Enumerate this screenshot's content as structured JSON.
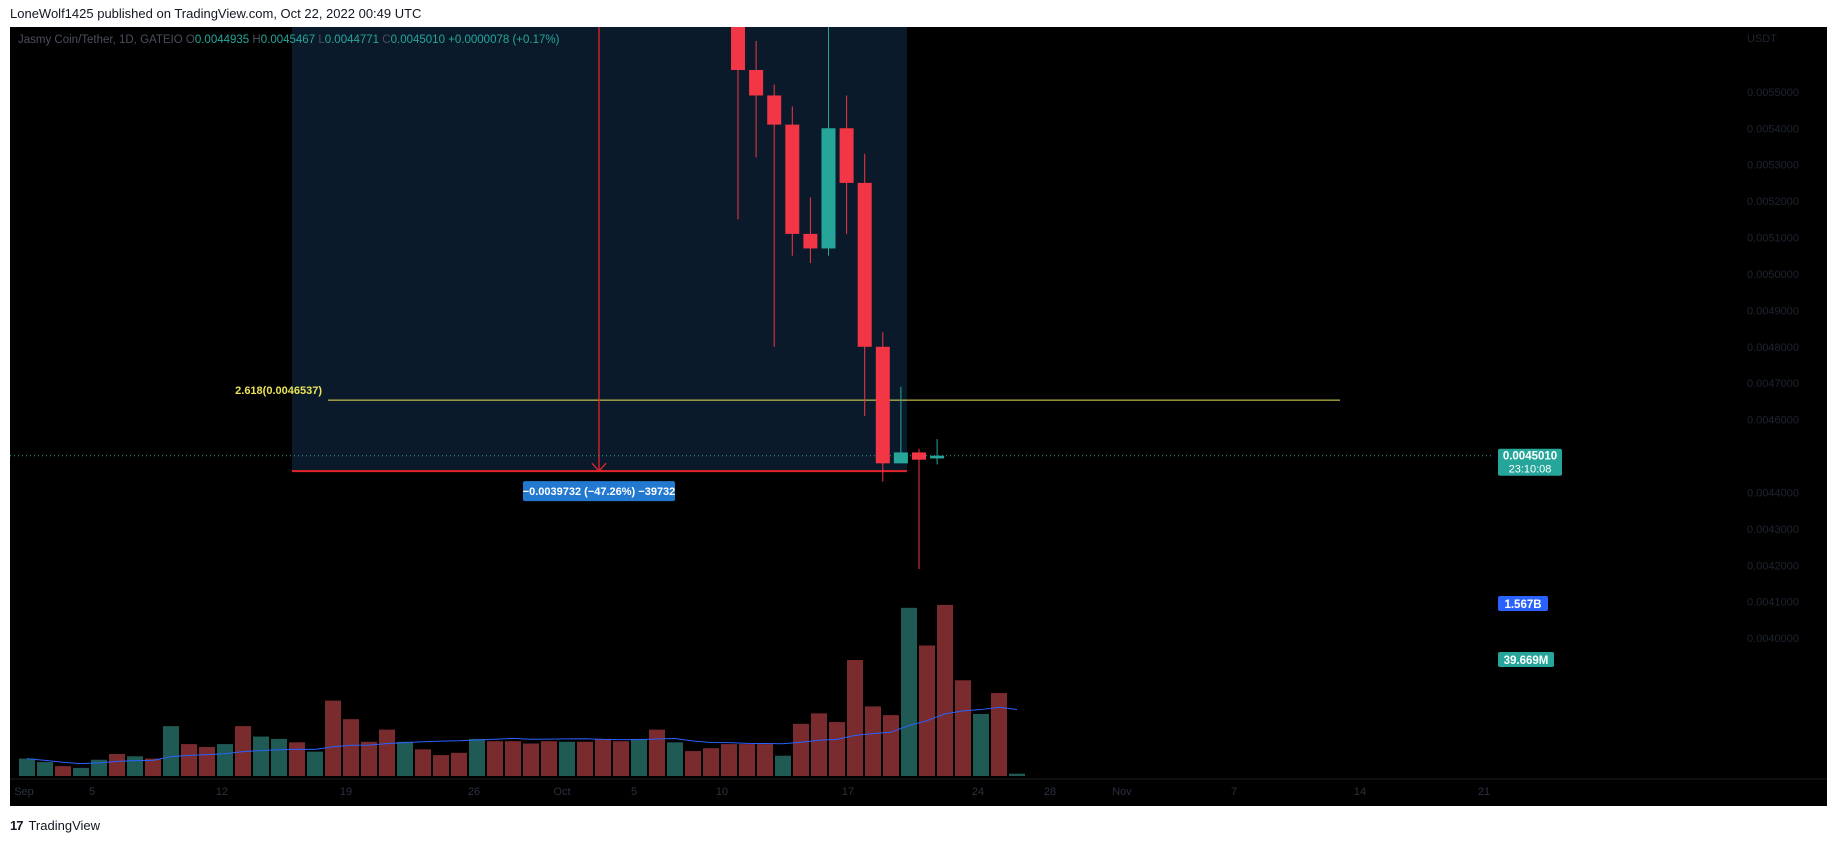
{
  "caption": "LoneWolf1425 published on TradingView.com, Oct 22, 2022 00:49 UTC",
  "legend": {
    "symbol": "Jasmy Coin/Tether, 1D, GATEIO",
    "o": "0.0044935",
    "h": "0.0045467",
    "l": "0.0044771",
    "c": "0.0045010",
    "chg": "+0.0000078 (+0.17%)"
  },
  "footer": {
    "brand": "TradingView",
    "logo": "17"
  },
  "colors": {
    "up": "#26a69a",
    "down": "#f23645",
    "vol_up": "#1f5a54",
    "vol_down": "#7a2b2e",
    "ma": "#2962ff",
    "fib": "#e9e357",
    "measure": "#e5242b",
    "zone": "#0a1a2b"
  },
  "chart_data": {
    "type": "candlestick",
    "symbol": "Jasmy Coin/Tether",
    "interval": "1D",
    "exchange": "GATEIO",
    "currency": "USDT",
    "ylim": [
      0.0038,
      0.0057
    ],
    "y_ticks": [
      "0.0055000",
      "0.0054000",
      "0.0053000",
      "0.0052000",
      "0.0051000",
      "0.0050000",
      "0.0049000",
      "0.0048000",
      "0.0047000",
      "0.0046000",
      "0.0044000",
      "0.0043000",
      "0.0042000",
      "0.0041000",
      "0.0040000"
    ],
    "x_ticks": [
      "Sep",
      "5",
      "12",
      "19",
      "26",
      "Oct",
      "5",
      "10",
      "17",
      "24",
      "28",
      "Nov",
      "7",
      "14",
      "21"
    ],
    "candles": [
      {
        "date": "2022-10-10",
        "o": 0.00575,
        "h": 0.0059,
        "l": 0.00515,
        "c": 0.00556
      },
      {
        "date": "2022-10-11",
        "o": 0.00556,
        "h": 0.00564,
        "l": 0.00532,
        "c": 0.00549
      },
      {
        "date": "2022-10-12",
        "o": 0.00549,
        "h": 0.00552,
        "l": 0.0048,
        "c": 0.00541
      },
      {
        "date": "2022-10-13",
        "o": 0.00541,
        "h": 0.00546,
        "l": 0.00505,
        "c": 0.00511
      },
      {
        "date": "2022-10-14",
        "o": 0.00511,
        "h": 0.00521,
        "l": 0.00503,
        "c": 0.00507
      },
      {
        "date": "2022-10-15",
        "o": 0.00507,
        "h": 0.00572,
        "l": 0.00505,
        "c": 0.0054
      },
      {
        "date": "2022-10-16",
        "o": 0.0054,
        "h": 0.00549,
        "l": 0.00511,
        "c": 0.00525
      },
      {
        "date": "2022-10-17",
        "o": 0.00525,
        "h": 0.00533,
        "l": 0.00461,
        "c": 0.0048
      },
      {
        "date": "2022-10-18",
        "o": 0.0048,
        "h": 0.00484,
        "l": 0.00443,
        "c": 0.00448
      },
      {
        "date": "2022-10-19",
        "o": 0.00448,
        "h": 0.00469,
        "l": 0.00448,
        "c": 0.00451
      },
      {
        "date": "2022-10-20",
        "o": 0.00451,
        "h": 0.00452,
        "l": 0.00419,
        "c": 0.00449
      },
      {
        "date": "2022-10-21",
        "o": 0.0044935,
        "h": 0.0045467,
        "l": 0.0044771,
        "c": 0.004501
      }
    ],
    "volume_ma_label": "1.567B",
    "volume_label": "39.669M",
    "volumes": [
      {
        "d": "up",
        "v": 0.3
      },
      {
        "d": "up",
        "v": 0.24
      },
      {
        "d": "down",
        "v": 0.17
      },
      {
        "d": "up",
        "v": 0.14
      },
      {
        "d": "up",
        "v": 0.28
      },
      {
        "d": "down",
        "v": 0.38
      },
      {
        "d": "up",
        "v": 0.34
      },
      {
        "d": "down",
        "v": 0.3
      },
      {
        "d": "up",
        "v": 0.86
      },
      {
        "d": "down",
        "v": 0.55
      },
      {
        "d": "down",
        "v": 0.5
      },
      {
        "d": "up",
        "v": 0.55
      },
      {
        "d": "down",
        "v": 0.86
      },
      {
        "d": "up",
        "v": 0.68
      },
      {
        "d": "up",
        "v": 0.64
      },
      {
        "d": "down",
        "v": 0.58
      },
      {
        "d": "up",
        "v": 0.42
      },
      {
        "d": "down",
        "v": 1.3
      },
      {
        "d": "down",
        "v": 0.98
      },
      {
        "d": "down",
        "v": 0.59
      },
      {
        "d": "down",
        "v": 0.8
      },
      {
        "d": "up",
        "v": 0.59
      },
      {
        "d": "down",
        "v": 0.46
      },
      {
        "d": "down",
        "v": 0.36
      },
      {
        "d": "down",
        "v": 0.4
      },
      {
        "d": "up",
        "v": 0.64
      },
      {
        "d": "down",
        "v": 0.6
      },
      {
        "d": "down",
        "v": 0.6
      },
      {
        "d": "down",
        "v": 0.56
      },
      {
        "d": "down",
        "v": 0.6
      },
      {
        "d": "up",
        "v": 0.59
      },
      {
        "d": "down",
        "v": 0.59
      },
      {
        "d": "down",
        "v": 0.64
      },
      {
        "d": "down",
        "v": 0.6
      },
      {
        "d": "up",
        "v": 0.64
      },
      {
        "d": "down",
        "v": 0.8
      },
      {
        "d": "up",
        "v": 0.58
      },
      {
        "d": "down",
        "v": 0.43
      },
      {
        "d": "down",
        "v": 0.48
      },
      {
        "d": "down",
        "v": 0.55
      },
      {
        "d": "down",
        "v": 0.55
      },
      {
        "d": "down",
        "v": 0.55
      },
      {
        "d": "up",
        "v": 0.35
      },
      {
        "d": "down",
        "v": 0.9
      },
      {
        "d": "down",
        "v": 1.08
      },
      {
        "d": "down",
        "v": 0.93
      },
      {
        "d": "down",
        "v": 2.0
      },
      {
        "d": "down",
        "v": 1.2
      },
      {
        "d": "down",
        "v": 1.05
      },
      {
        "d": "up",
        "v": 2.9
      },
      {
        "d": "down",
        "v": 2.25
      },
      {
        "d": "down",
        "v": 2.95
      },
      {
        "d": "down",
        "v": 1.65
      },
      {
        "d": "up",
        "v": 1.07
      },
      {
        "d": "down",
        "v": 1.43
      },
      {
        "d": "up",
        "v": 0.04
      }
    ],
    "annotations": {
      "fib_label": "2.618(0.0046537)",
      "fib_level": 0.0046537,
      "measure_label": "−0.0039732 (−47.26%) −39732",
      "measure_low": 0.0044585,
      "last_price_label": "0.0045010",
      "countdown": "23:10:08"
    }
  }
}
